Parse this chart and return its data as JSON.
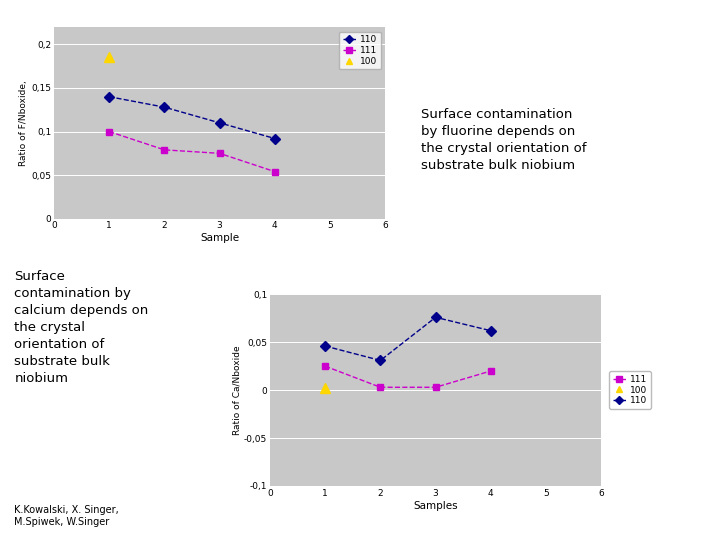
{
  "chart1": {
    "xlabel": "Sample",
    "ylabel": "Ratio of F/Nboxide,",
    "xlim": [
      0,
      6
    ],
    "ylim": [
      0,
      0.22
    ],
    "yticks": [
      0,
      0.05,
      0.1,
      0.15,
      0.2
    ],
    "ytick_labels": [
      "0",
      "0,05",
      "0,1",
      "0,15",
      "0,2"
    ],
    "xticks": [
      0,
      1,
      2,
      3,
      4,
      5,
      6
    ],
    "series_order": [
      "110",
      "111",
      "100"
    ],
    "series": {
      "110": {
        "x": [
          1,
          2,
          3,
          4
        ],
        "y": [
          0.14,
          0.128,
          0.11,
          0.092
        ],
        "color": "#00008B",
        "marker": "D",
        "marker_size": 5,
        "linestyle": "--"
      },
      "111": {
        "x": [
          1,
          2,
          3,
          4
        ],
        "y": [
          0.1,
          0.079,
          0.075,
          0.054
        ],
        "color": "#CC00CC",
        "marker": "s",
        "marker_size": 5,
        "linestyle": "--"
      },
      "100": {
        "x": [
          1
        ],
        "y": [
          0.185
        ],
        "color": "#FFD700",
        "marker": "^",
        "marker_size": 7,
        "linestyle": "None"
      }
    },
    "legend_labels": [
      "110",
      "111",
      "100"
    ],
    "bg_color": "#C8C8C8"
  },
  "chart2": {
    "xlabel": "Samples",
    "ylabel": "Ratio of Ca/Nboxide",
    "xlim": [
      0,
      6
    ],
    "ylim": [
      -0.1,
      0.1
    ],
    "yticks": [
      -0.1,
      -0.05,
      0,
      0.05,
      0.1
    ],
    "ytick_labels": [
      "-0,1",
      "-0,05",
      "0",
      "0,05",
      "0,1"
    ],
    "xticks": [
      0,
      1,
      2,
      3,
      4,
      5,
      6
    ],
    "series_order": [
      "111",
      "100",
      "110"
    ],
    "series": {
      "111": {
        "x": [
          1,
          2,
          3,
          4
        ],
        "y": [
          0.025,
          0.003,
          0.003,
          0.02
        ],
        "color": "#CC00CC",
        "marker": "s",
        "marker_size": 5,
        "linestyle": "--"
      },
      "100": {
        "x": [
          1
        ],
        "y": [
          0.002
        ],
        "color": "#FFD700",
        "marker": "^",
        "marker_size": 7,
        "linestyle": "None"
      },
      "110": {
        "x": [
          1,
          2,
          3,
          4
        ],
        "y": [
          0.046,
          0.031,
          0.076,
          0.062
        ],
        "color": "#00008B",
        "marker": "D",
        "marker_size": 5,
        "linestyle": "--"
      }
    },
    "legend_labels": [
      "111",
      "100",
      "110"
    ],
    "bg_color": "#C8C8C8"
  },
  "text_top_right": "Surface contamination\nby fluorine depends on\nthe crystal orientation of\nsubstrate bulk niobium",
  "text_bottom_left": "Surface\ncontamination by\ncalcium depends on\nthe crystal\norientation of\nsubstrate bulk\nniobium",
  "text_authors": "K.Kowalski, X. Singer,\nM.Spiwek, W.Singer",
  "bg_color": "#FFFFFF"
}
